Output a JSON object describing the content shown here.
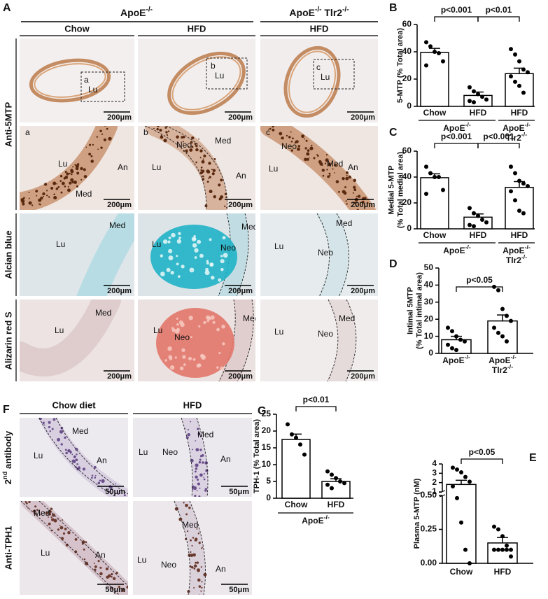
{
  "figure": {
    "panel_a": {
      "letter": "A",
      "groups": [
        [
          "ApoE",
          "-/-"
        ],
        [
          "ApoE",
          "-/-",
          " Tlr2",
          "-/-"
        ]
      ],
      "columns": [
        "Chow",
        "HFD",
        "HFD"
      ],
      "row_labels": [
        "Anti-5MTP",
        "Alcian blue",
        "Alizarin red S"
      ],
      "scale_bar": "200μm",
      "images": [
        [
          [
            "a",
            "Lu"
          ],
          [
            "b",
            "Lu"
          ],
          [
            "c",
            "Lu"
          ]
        ],
        [
          [
            "a",
            "Lu",
            "An",
            "Med"
          ],
          [
            "b",
            "Lu",
            "Neo",
            "Med",
            "An"
          ],
          [
            "c",
            "Neo",
            "Lu",
            "Med",
            "An"
          ]
        ],
        [
          [
            "Lu",
            "Med"
          ],
          [
            "Lu",
            "Neo",
            "Med"
          ],
          [
            "Lu",
            "Neo",
            "Med"
          ]
        ],
        [
          [
            "Lu",
            "Med"
          ],
          [
            "Lu",
            "Neo",
            "Med"
          ],
          [
            "Lu",
            "Neo",
            "Med"
          ]
        ]
      ]
    },
    "panel_f": {
      "letter": "F",
      "columns": [
        "Chow diet",
        "HFD"
      ],
      "row_labels": [
        [
          "2",
          "nd",
          " antibody"
        ],
        "Anti-TPH1"
      ],
      "scale_bar": "50μm",
      "images": [
        [
          [
            "Lu",
            "Med",
            "An"
          ],
          [
            "Lu",
            "Neo",
            "Med",
            "An"
          ]
        ],
        [
          [
            "Med",
            "Lu",
            "An"
          ],
          [
            "Med",
            "Lu",
            "Neo",
            "An"
          ]
        ]
      ]
    }
  },
  "chart_data": [
    {
      "type": "bar",
      "letter": "B",
      "y_label": "5-MTP (% Total area)",
      "categories": [
        "Chow",
        "HFD",
        "HFD"
      ],
      "values": [
        39.5,
        8,
        24
      ],
      "errors": [
        3,
        2.5,
        4
      ],
      "points": [
        [
          47,
          44,
          40,
          39,
          33,
          30
        ],
        [
          14,
          11,
          9,
          7,
          5,
          4,
          3
        ],
        [
          42,
          38,
          33,
          27,
          25,
          22,
          18,
          15,
          10
        ]
      ],
      "groups": [
        [
          [
            "ApoE",
            "-/-"
          ]
        ],
        [
          [
            "ApoE",
            "-/-"
          ],
          [
            "Tlr2",
            "-/-"
          ]
        ]
      ],
      "annotations": [
        "p<0.001",
        "p<0.01"
      ],
      "ylim": [
        0,
        60
      ],
      "yticks": [
        0,
        20,
        40,
        60
      ],
      "bar_color": "#ffffff",
      "point_color": "#000000"
    },
    {
      "type": "bar",
      "letter": "C",
      "y_label": [
        [
          "Medial 5-MTP"
        ],
        [
          "(% Total medial area)"
        ]
      ],
      "categories": [
        "Chow",
        "HFD",
        "HFD"
      ],
      "values": [
        39.5,
        9,
        32
      ],
      "errors": [
        3,
        2.5,
        4.5
      ],
      "points": [
        [
          48,
          43,
          40,
          40,
          30,
          27
        ],
        [
          16,
          12,
          10,
          7,
          5,
          3,
          2
        ],
        [
          48,
          43,
          37,
          35,
          33,
          29,
          22,
          14,
          12
        ]
      ],
      "groups": [
        [
          [
            "ApoE",
            "-/-"
          ]
        ],
        [
          [
            "ApoE",
            "-/-"
          ],
          [
            "Tlr2",
            "-/-"
          ]
        ]
      ],
      "annotations": [
        "p<0.001",
        "p<0.001"
      ],
      "ylim": [
        0,
        60
      ],
      "yticks": [
        0,
        20,
        40,
        60
      ],
      "bar_color": "#ffffff",
      "point_color": "#000000"
    },
    {
      "type": "bar",
      "letter": "D",
      "y_label": [
        [
          "Intimal 5MTP"
        ],
        [
          "(% Total intimal area)"
        ]
      ],
      "categories": [
        [
          [
            "ApoE",
            "-/-"
          ]
        ],
        [
          [
            "ApoE",
            "-/-"
          ],
          [
            "Tlr2",
            "-/-"
          ]
        ]
      ],
      "values": [
        8,
        19
      ],
      "errors": [
        2,
        3.5
      ],
      "points": [
        [
          15,
          13,
          10,
          8,
          7,
          5,
          3,
          2
        ],
        [
          39,
          37,
          26,
          22,
          19,
          15,
          12,
          10,
          7
        ]
      ],
      "annotations": [
        "p<0.05"
      ],
      "ylim": [
        0,
        50
      ],
      "yticks": [
        0,
        10,
        20,
        30,
        40,
        50
      ],
      "bar_color": "#ffffff",
      "point_color": "#000000"
    },
    {
      "type": "bar",
      "letter": "E",
      "y_label": "Plasma 5-MTP (nM)",
      "categories": [
        "Chow",
        "HFD"
      ],
      "values": [
        1.8,
        0.15
      ],
      "errors": [
        0.45,
        0.04
      ],
      "points": [
        [
          3.6,
          3.4,
          3.1,
          2.6,
          2.1,
          1.6,
          0.48,
          0.3,
          0.1,
          0
        ],
        [
          0.27,
          0.25,
          0.2,
          0.13,
          0.1,
          0.1,
          0.1,
          0.1,
          0.1,
          0.05
        ]
      ],
      "annotations": [
        "p<0.05"
      ],
      "ylim": [
        0,
        4
      ],
      "y_break": [
        0.5,
        1
      ],
      "yticks": [
        {
          "value": 0,
          "label": "0.00"
        },
        {
          "value": 0.25,
          "label": "0.25"
        },
        {
          "value": 0.5,
          "label": "0.50"
        },
        1,
        2,
        3,
        4
      ],
      "bar_color": "#ffffff",
      "point_color": "#000000"
    },
    {
      "type": "bar",
      "letter": "G",
      "y_label": "TPH-1 (% Total area)",
      "categories": [
        "Chow",
        "HFD"
      ],
      "values": [
        17.5,
        5
      ],
      "errors": [
        1.6,
        0.8
      ],
      "points": [
        [
          22,
          19,
          18,
          16,
          13
        ],
        [
          8,
          7,
          6,
          5,
          4.5,
          4,
          3
        ]
      ],
      "groups": [
        [
          [
            "ApoE",
            "-/-"
          ]
        ]
      ],
      "annotations": [
        "p<0.01"
      ],
      "ylim": [
        0,
        25
      ],
      "yticks": [
        0,
        5,
        10,
        15,
        20,
        25
      ],
      "bar_color": "#ffffff",
      "point_color": "#000000"
    }
  ]
}
